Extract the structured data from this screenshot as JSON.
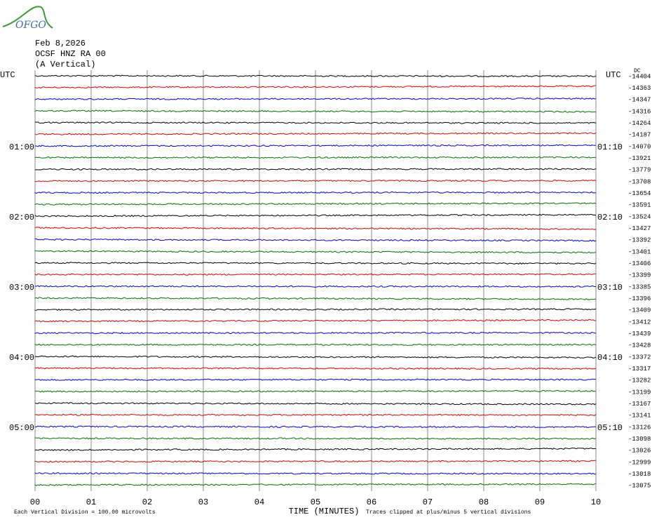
{
  "logo": "OFGO",
  "chart_data": {
    "type": "helicorder",
    "title_lines": [
      "Feb 8,2026",
      "OCSF HNZ RA 00",
      "(A Vertical)"
    ],
    "left_title": "UTC",
    "right_title": "UTC",
    "offset_title": "DC",
    "left_labels": [
      null,
      null,
      null,
      null,
      null,
      null,
      "01:00",
      null,
      null,
      null,
      null,
      null,
      "02:00",
      null,
      null,
      null,
      null,
      null,
      "03:00",
      null,
      null,
      null,
      null,
      null,
      "04:00",
      null,
      null,
      null,
      null,
      null,
      "05:00",
      null,
      null,
      null,
      null,
      null
    ],
    "right_labels": [
      null,
      null,
      null,
      null,
      null,
      null,
      "01:10",
      null,
      null,
      null,
      null,
      null,
      "02:10",
      null,
      null,
      null,
      null,
      null,
      "03:10",
      null,
      null,
      null,
      null,
      null,
      "04:10",
      null,
      null,
      null,
      null,
      null,
      "05:10",
      null,
      null,
      null,
      null,
      null
    ],
    "offsets": [
      -14404,
      -14363,
      -14347,
      -14316,
      -14264,
      -14187,
      -14070,
      -13921,
      -13779,
      -13708,
      -13654,
      -13591,
      -13524,
      -13427,
      -13392,
      -13401,
      -13406,
      -13399,
      -13385,
      -13396,
      -13409,
      -13412,
      -13439,
      -13428,
      -13372,
      -13317,
      -13282,
      -13199,
      -13167,
      -13141,
      -13126,
      -13098,
      -13026,
      -12999,
      -13018,
      -13075
    ],
    "colors": [
      "#000000",
      "#e00000",
      "#0000e0",
      "#007000"
    ],
    "xlabel": "TIME (MINUTES)",
    "xlim": [
      0,
      10
    ],
    "xticks": [
      {
        "value": 0,
        "label": "00"
      },
      {
        "value": 1,
        "label": "01"
      },
      {
        "value": 2,
        "label": "02"
      },
      {
        "value": 3,
        "label": "03"
      },
      {
        "value": 4,
        "label": "04"
      },
      {
        "value": 5,
        "label": "05"
      },
      {
        "value": 6,
        "label": "06"
      },
      {
        "value": 7,
        "label": "07"
      },
      {
        "value": 8,
        "label": "08"
      },
      {
        "value": 9,
        "label": "09"
      },
      {
        "value": 10,
        "label": "10"
      }
    ],
    "grid": true,
    "notes": [
      "Each Vertical Division =  100.00 microvolts",
      "Traces clipped at plus/minus 5 vertical divisions"
    ]
  }
}
